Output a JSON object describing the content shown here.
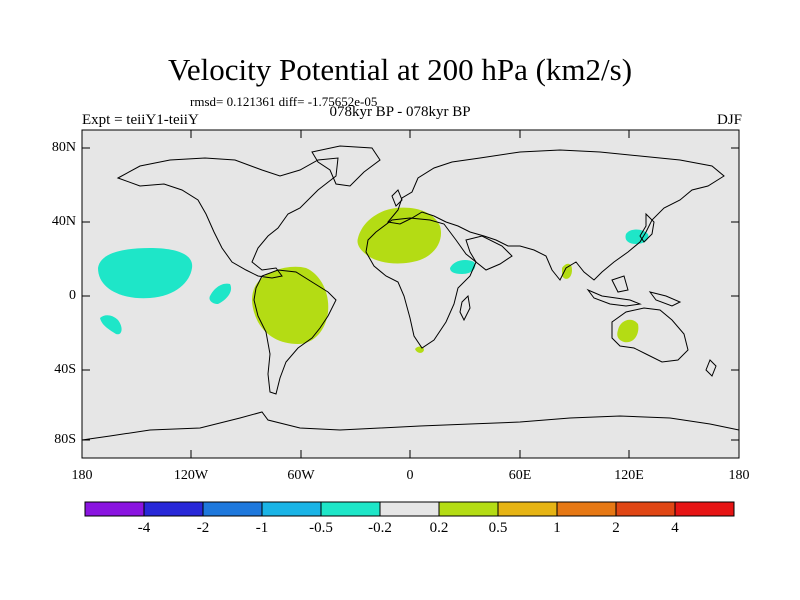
{
  "title": "Velocity Potential at 200 hPa (km2/s)",
  "stats_line": "rmsd= 0.121361 diff= -1.75652e-05",
  "left_label": "Expt = teiiY1-teiiY",
  "center_label": "078kyr BP - 078kyr BP",
  "season": "DJF",
  "lat_ticks": [
    "80N",
    "40N",
    "0",
    "40S",
    "80S"
  ],
  "lon_ticks": [
    "180",
    "120W",
    "60W",
    "0",
    "60E",
    "120E",
    "180"
  ],
  "colorbar": {
    "colors": [
      "#8a14e0",
      "#2828d8",
      "#1e78dc",
      "#1ab4e6",
      "#1ee6c8",
      "#e6e6e6",
      "#b4dc14",
      "#e6b414",
      "#e67814",
      "#e04614",
      "#e61414"
    ],
    "labels": [
      "-4",
      "-2",
      "-1",
      "-0.5",
      "-0.2",
      "0.2",
      "0.5",
      "1",
      "2",
      "4"
    ]
  },
  "colors": {
    "ocean_land_background": "#e6e6e6",
    "positive_anomaly": "#b4dc14",
    "negative_anomaly": "#1ee6c8"
  }
}
